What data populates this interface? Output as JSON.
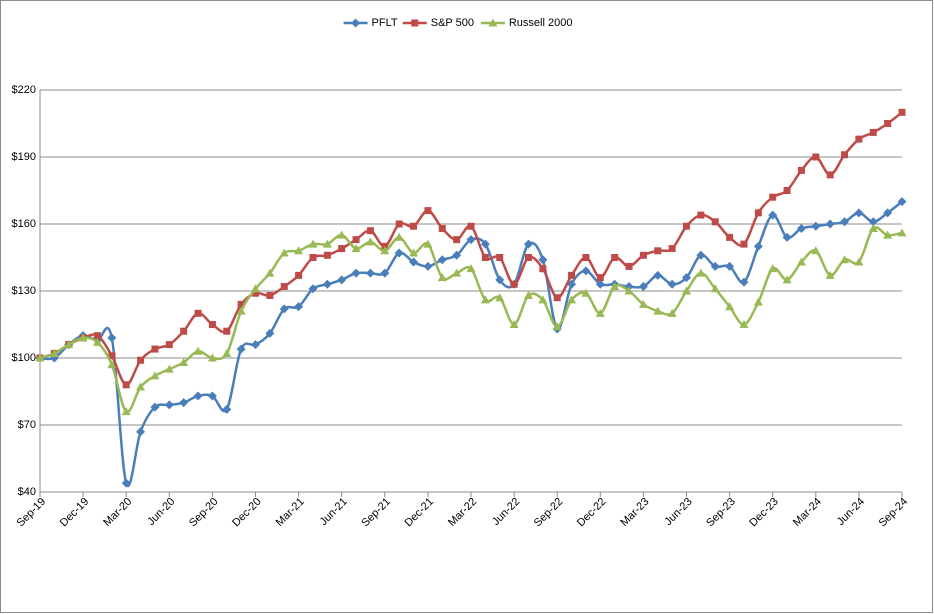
{
  "chart_data": {
    "type": "line",
    "categories": [
      "Sep-19",
      null,
      null,
      "Dec-19",
      null,
      null,
      "Mar-20",
      null,
      null,
      "Jun-20",
      null,
      null,
      "Sep-20",
      null,
      null,
      "Dec-20",
      null,
      null,
      "Mar-21",
      null,
      null,
      "Jun-21",
      null,
      null,
      "Sep-21",
      null,
      null,
      "Dec-21",
      null,
      null,
      "Mar-22",
      null,
      null,
      "Jun-22",
      null,
      null,
      "Sep-22",
      null,
      null,
      "Dec-22",
      null,
      null,
      "Mar-23",
      null,
      null,
      "Jun-23",
      null,
      null,
      "Sep-23",
      null,
      null,
      "Dec-23",
      null,
      null,
      "Mar-24",
      null,
      null,
      "Jun-24",
      null,
      null,
      "Sep-24"
    ],
    "series": [
      {
        "name": "PFLT",
        "color": "#4a7ebb",
        "marker": "diamond",
        "values": [
          100,
          100,
          106,
          110,
          108,
          109,
          44,
          67,
          78,
          79,
          80,
          83,
          83,
          77,
          104,
          106,
          111,
          122,
          123,
          131,
          133,
          135,
          138,
          138,
          138,
          147,
          143,
          141,
          144,
          146,
          153,
          151,
          135,
          133,
          151,
          144,
          113,
          133,
          139,
          133,
          133,
          132,
          132,
          137,
          133,
          136,
          146,
          141,
          141,
          134,
          150,
          164,
          154,
          158,
          159,
          160,
          161,
          165,
          161,
          165,
          170
        ]
      },
      {
        "name": "S&P 500",
        "color": "#be4b48",
        "marker": "square",
        "values": [
          100,
          102,
          106,
          109,
          110,
          101,
          88,
          99,
          104,
          106,
          112,
          120,
          115,
          112,
          124,
          129,
          128,
          132,
          137,
          145,
          146,
          149,
          153,
          157,
          150,
          160,
          159,
          166,
          158,
          153,
          159,
          145,
          145,
          133,
          145,
          140,
          127,
          137,
          145,
          136,
          145,
          141,
          146,
          148,
          149,
          159,
          164,
          161,
          154,
          151,
          165,
          172,
          175,
          184,
          190,
          182,
          191,
          198,
          201,
          205,
          210
        ]
      },
      {
        "name": "Russell 2000",
        "color": "#98b954",
        "marker": "triangle",
        "values": [
          100,
          102,
          106,
          109,
          107,
          97,
          76,
          87,
          92,
          95,
          98,
          103,
          100,
          102,
          121,
          131,
          138,
          147,
          148,
          151,
          151,
          155,
          149,
          152,
          148,
          154,
          147,
          151,
          136,
          138,
          140,
          126,
          127,
          115,
          128,
          126,
          114,
          126,
          129,
          120,
          132,
          130,
          124,
          121,
          120,
          130,
          138,
          131,
          123,
          115,
          125,
          140,
          135,
          143,
          148,
          137,
          144,
          143,
          158,
          155,
          156
        ]
      }
    ],
    "ylim": [
      40,
      220
    ],
    "yticks": [
      {
        "value": 40,
        "label": "$40"
      },
      {
        "value": 70,
        "label": "$70"
      },
      {
        "value": 100,
        "label": "$100"
      },
      {
        "value": 130,
        "label": "$130"
      },
      {
        "value": 160,
        "label": "$160"
      },
      {
        "value": 190,
        "label": "$190"
      },
      {
        "value": 220,
        "label": "$220"
      }
    ],
    "grid": true,
    "legend": "top"
  }
}
